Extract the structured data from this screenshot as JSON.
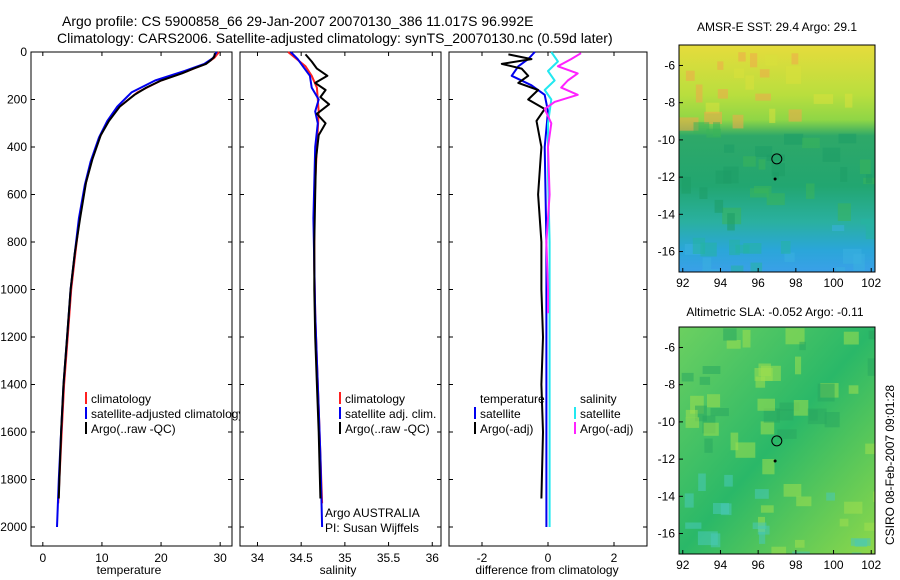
{
  "header": {
    "title_line1": "Argo profile: CS 5900858_66 29-Jan-2007 20070130_386 11.017S 96.992E",
    "title_line2": "Climatology: CARS2006. Satellite-adjusted climatology: synTS_20070130.nc (0.59d later)"
  },
  "side_stamp": "CSIRO 08-Feb-2007 09:01:28",
  "colors": {
    "climatology": "#ff2020",
    "satellite": "#0000ee",
    "argo": "#000000",
    "sal_satellite": "#22e8f0",
    "sal_argo": "#ff22ff"
  },
  "chart_data": [
    {
      "id": "temperature",
      "type": "line",
      "xlabel": "temperature",
      "ylabel": "",
      "xlim": [
        -2,
        32
      ],
      "ylim": [
        0,
        2080
      ],
      "y_reversed": true,
      "xticks": [
        0,
        10,
        20,
        30
      ],
      "xtick_labels": [
        "0",
        "10",
        "20",
        "30"
      ],
      "yticks": [
        0,
        200,
        400,
        600,
        800,
        1000,
        1200,
        1400,
        1600,
        1800,
        2000
      ],
      "ytick_labels": [
        "0",
        "200",
        "400",
        "600",
        "800",
        "1000",
        "1200",
        "1400",
        "1600",
        "1800",
        "2000"
      ],
      "legend": [
        "climatology",
        "satellite-adjusted climatology",
        "Argo(..raw -QC)"
      ],
      "series": [
        {
          "name": "climatology",
          "color": "climatology",
          "x": [
            29.8,
            29.0,
            27.5,
            24.5,
            20.0,
            16.0,
            13.0,
            11.0,
            9.6,
            8.2,
            7.2,
            6.2,
            5.5,
            4.8,
            4.2,
            3.6,
            3.2,
            2.8,
            2.6
          ],
          "y": [
            0,
            25,
            50,
            80,
            120,
            170,
            230,
            290,
            360,
            460,
            560,
            700,
            850,
            1000,
            1200,
            1400,
            1600,
            1800,
            1900
          ]
        },
        {
          "name": "satellite-adjusted climatology",
          "color": "satellite",
          "x": [
            29.4,
            28.8,
            27.3,
            24.0,
            19.0,
            15.0,
            12.6,
            10.9,
            9.5,
            8.1,
            7.1,
            6.1,
            5.4,
            4.7,
            4.1,
            3.5,
            3.1,
            2.7,
            2.4
          ],
          "y": [
            0,
            25,
            50,
            80,
            120,
            170,
            230,
            290,
            360,
            460,
            560,
            700,
            850,
            1000,
            1200,
            1400,
            1600,
            1800,
            2000
          ]
        },
        {
          "name": "Argo(..raw -QC)",
          "color": "argo",
          "x": [
            29.1,
            29.0,
            28.4,
            27.6,
            25.5,
            23.5,
            20.0,
            17.5,
            15.5,
            13.0,
            11.2,
            9.8,
            8.4,
            7.3,
            6.3,
            5.4,
            4.7,
            4.1,
            3.5,
            3.1,
            2.8,
            2.7
          ],
          "y": [
            5,
            20,
            35,
            50,
            70,
            90,
            120,
            150,
            180,
            230,
            290,
            350,
            450,
            550,
            700,
            850,
            1000,
            1200,
            1400,
            1600,
            1800,
            1880
          ]
        }
      ]
    },
    {
      "id": "salinity",
      "type": "line",
      "xlabel": "salinity",
      "ylabel": "",
      "xlim": [
        33.8,
        36.1
      ],
      "ylim": [
        0,
        2080
      ],
      "y_reversed": true,
      "xticks": [
        34,
        34.5,
        35,
        35.5,
        36
      ],
      "xtick_labels": [
        "34",
        "34.5",
        "35",
        "35.5",
        "36"
      ],
      "legend": [
        "climatology",
        "satellite adj. clim.",
        "Argo(..raw -QC)"
      ],
      "annotation": [
        "Argo AUSTRALIA",
        "PI: Susan Wijffels"
      ],
      "series": [
        {
          "name": "climatology",
          "color": "climatology",
          "x": [
            34.35,
            34.45,
            34.55,
            34.62,
            34.68,
            34.7,
            34.68,
            34.66,
            34.65,
            34.65,
            34.66,
            34.68,
            34.7,
            34.72,
            34.74
          ],
          "y": [
            0,
            30,
            60,
            100,
            150,
            250,
            400,
            550,
            700,
            900,
            1100,
            1300,
            1500,
            1700,
            1900
          ]
        },
        {
          "name": "satellite adj. clim.",
          "color": "satellite",
          "x": [
            34.38,
            34.46,
            34.52,
            34.6,
            34.62,
            34.7,
            34.66,
            34.69,
            34.66,
            34.65,
            34.64,
            34.65,
            34.66,
            34.68,
            34.7,
            34.72,
            34.74
          ],
          "y": [
            0,
            30,
            60,
            100,
            150,
            200,
            250,
            300,
            400,
            550,
            700,
            900,
            1100,
            1300,
            1500,
            1700,
            2000
          ]
        },
        {
          "name": "Argo(..raw -QC)",
          "color": "argo",
          "x": [
            34.55,
            34.62,
            34.68,
            34.8,
            34.66,
            34.78,
            34.72,
            34.82,
            34.68,
            34.78,
            34.7,
            34.67,
            34.66,
            34.65,
            34.65,
            34.66,
            34.68,
            34.7,
            34.72
          ],
          "y": [
            10,
            40,
            70,
            100,
            130,
            160,
            190,
            220,
            260,
            300,
            350,
            450,
            600,
            800,
            1000,
            1200,
            1400,
            1600,
            1880
          ]
        }
      ]
    },
    {
      "id": "difference",
      "type": "line",
      "xlabel": "difference from climatology",
      "ylabel": "",
      "xlim": [
        -3,
        3
      ],
      "ylim": [
        0,
        2080
      ],
      "y_reversed": true,
      "xticks": [
        -2,
        0,
        2
      ],
      "xtick_labels": [
        "-2",
        "0",
        "2"
      ],
      "legend_left": [
        "temperature",
        "satellite",
        "Argo(-adj)"
      ],
      "legend_right": [
        "salinity",
        "satellite",
        "Argo(-adj)"
      ],
      "series": [
        {
          "name": "temperature satellite",
          "color": "satellite",
          "x": [
            -0.4,
            -0.6,
            -0.9,
            -1.1,
            -0.5,
            -0.1,
            0.0,
            -0.1,
            -0.05,
            -0.05,
            -0.05,
            -0.05
          ],
          "y": [
            0,
            30,
            60,
            100,
            140,
            180,
            250,
            400,
            800,
            1200,
            1600,
            2000
          ]
        },
        {
          "name": "temperature Argo(-adj)",
          "color": "argo",
          "x": [
            -1.2,
            -0.5,
            -1.4,
            -0.8,
            -0.6,
            -0.9,
            -0.3,
            -0.6,
            -0.1,
            -0.35,
            -0.2,
            -0.3,
            -0.2,
            -0.2,
            -0.15,
            -0.2,
            -0.15,
            -0.2
          ],
          "y": [
            10,
            30,
            50,
            70,
            100,
            130,
            160,
            200,
            240,
            290,
            400,
            600,
            800,
            1000,
            1200,
            1400,
            1600,
            1880
          ]
        },
        {
          "name": "salinity satellite",
          "color": "sal_satellite",
          "x": [
            0.1,
            0.3,
            0.0,
            0.2,
            -0.1,
            0.1,
            0.0,
            0.0,
            0.05,
            0.05,
            0.05,
            0.05
          ],
          "y": [
            0,
            40,
            80,
            120,
            160,
            200,
            300,
            500,
            800,
            1200,
            1600,
            2000
          ]
        },
        {
          "name": "salinity Argo(-adj)",
          "color": "sal_argo",
          "x": [
            1.0,
            0.7,
            0.3,
            0.9,
            0.6,
            0.4,
            0.9,
            0.2,
            -0.1,
            0.1,
            0.0,
            0.05,
            -0.05,
            0.0,
            0.0
          ],
          "y": [
            5,
            30,
            60,
            90,
            120,
            150,
            180,
            210,
            240,
            300,
            400,
            600,
            800,
            1000,
            1100
          ]
        }
      ]
    },
    {
      "id": "sst_map",
      "type": "heatmap",
      "title": "AMSR-E SST: 29.4 Argo: 29.1",
      "xlim": [
        91.8,
        102.2
      ],
      "ylim": [
        -17.1,
        -4.9
      ],
      "xticks": [
        92,
        94,
        96,
        98,
        100,
        102
      ],
      "xtick_labels": [
        "92",
        "94",
        "96",
        "98",
        "100",
        "102"
      ],
      "yticks": [
        -6,
        -8,
        -10,
        -12,
        -14,
        -16
      ],
      "ytick_labels": [
        "-6",
        "-8",
        "-10",
        "-12",
        "-14",
        "-16"
      ],
      "profile_marker": {
        "lon": 96.99,
        "lat": -11.02
      },
      "track_point": {
        "lon": 96.9,
        "lat": -12.1
      }
    },
    {
      "id": "sla_map",
      "type": "heatmap",
      "title": "Altimetric SLA: -0.052 Argo: -0.11",
      "xlim": [
        91.8,
        102.2
      ],
      "ylim": [
        -17.1,
        -4.9
      ],
      "xticks": [
        92,
        94,
        96,
        98,
        100,
        102
      ],
      "xtick_labels": [
        "92",
        "94",
        "96",
        "98",
        "100",
        "102"
      ],
      "yticks": [
        -6,
        -8,
        -10,
        -12,
        -14,
        -16
      ],
      "ytick_labels": [
        "-6",
        "-8",
        "-10",
        "-12",
        "-14",
        "-16"
      ],
      "profile_marker": {
        "lon": 96.99,
        "lat": -11.02
      },
      "track_point": {
        "lon": 96.9,
        "lat": -12.1
      }
    }
  ]
}
